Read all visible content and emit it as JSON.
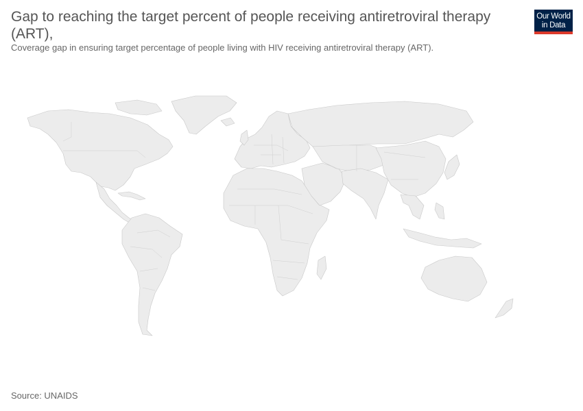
{
  "title": "Gap to reaching the target percent of people receiving antiretroviral therapy (ART),",
  "subtitle": "Coverage gap in ensuring target percentage of people living with HIV receiving antiretroviral therapy (ART).",
  "logo": {
    "line1": "Our World",
    "line2": "in Data"
  },
  "source": "Source: UNAIDS",
  "map": {
    "fill_color": "#ececec",
    "border_color": "#c8c8c8",
    "data_shown": "none"
  }
}
